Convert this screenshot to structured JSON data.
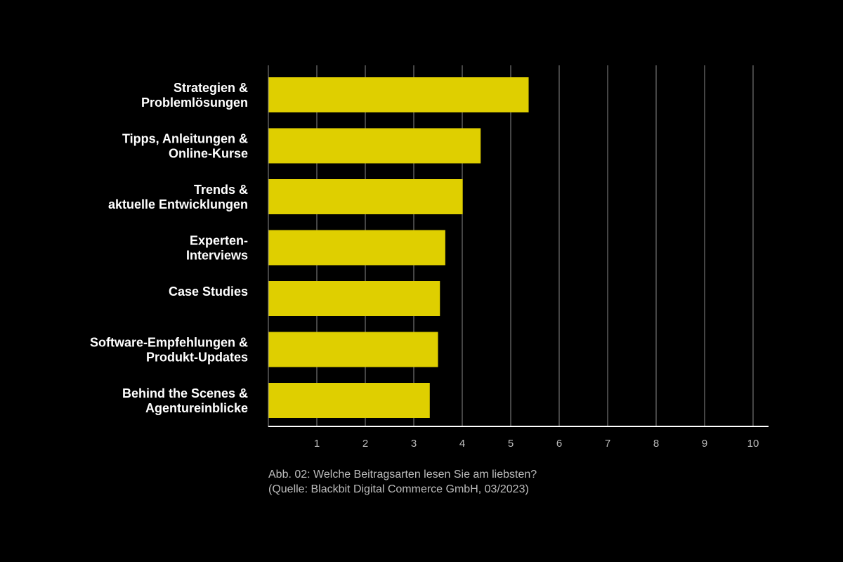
{
  "chart_data": {
    "type": "bar",
    "orientation": "horizontal",
    "categories": [
      [
        "Strategien &",
        "Problemlösungen"
      ],
      [
        "Tipps, Anleitungen &",
        "Online-Kurse"
      ],
      [
        "Trends &",
        "aktuelle Entwicklungen"
      ],
      [
        "Experten-",
        "Interviews"
      ],
      [
        "Case Studies"
      ],
      [
        "Software-Empfehlungen &",
        "Produkt-Updates"
      ],
      [
        "Behind the Scenes &",
        "Agentureinblicke"
      ]
    ],
    "values": [
      5.37,
      4.38,
      4.01,
      3.65,
      3.54,
      3.5,
      3.33
    ],
    "xticks": [
      1,
      2,
      3,
      4,
      5,
      6,
      7,
      8,
      9,
      10
    ],
    "xlim": [
      0,
      10.3
    ],
    "grid": true,
    "bar_color": "#dfcf00",
    "grid_color": "#8a8a8a",
    "axis_color": "#ffffff"
  },
  "caption": {
    "line1": "Abb. 02: Welche Beitragsarten lesen Sie am liebsten?",
    "line2": "(Quelle: Blackbit Digital Commerce GmbH, 03/2023)"
  }
}
